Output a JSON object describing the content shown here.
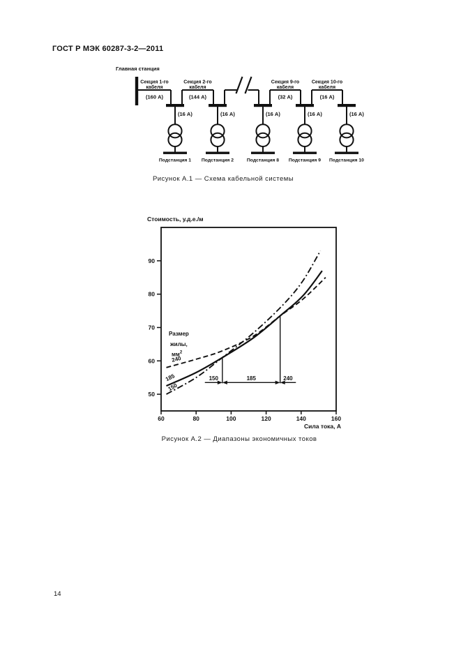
{
  "page": {
    "header": "ГОСТ Р МЭК 60287-3-2—2011",
    "page_number": "14"
  },
  "figure1": {
    "caption": "Рисунок А.1 — Схема кабельной системы",
    "main_station_label": "Главная станция",
    "sections": [
      {
        "label_line1": "Секция 1-го",
        "label_line2": "кабеля",
        "current": "(160 А)"
      },
      {
        "label_line1": "Секция 2-го",
        "label_line2": "кабеля",
        "current": "(144 А)"
      },
      {
        "break": true
      },
      {
        "label_line1": "Секция 9-го",
        "label_line2": "кабеля",
        "current": "(32 А)"
      },
      {
        "label_line1": "Секция 10-го",
        "label_line2": "кабеля",
        "current": "(16 А)"
      }
    ],
    "drop_current": "(16 А)",
    "substations": [
      "Подстанция 1",
      "Подстанция 2",
      "Подстанция 8",
      "Подстанция 9",
      "Подстанция 10"
    ]
  },
  "figure2": {
    "caption": "Рисунок А.2 — Диапазоны экономичных токов",
    "chart_data": {
      "type": "line",
      "title": "",
      "xlabel": "Сила тока, А",
      "ylabel": "Стоимость, у.д.е./м",
      "xlim": [
        60,
        160
      ],
      "ylim": [
        45,
        100
      ],
      "xticks": [
        60,
        80,
        100,
        120,
        140,
        160
      ],
      "yticks": [
        50,
        60,
        70,
        80,
        90
      ],
      "grid": false,
      "legend_title": {
        "lines": [
          "Размер",
          "жилы,"
        ],
        "unit_base": "мм",
        "unit_sup": "2"
      },
      "series": [
        {
          "name": "240",
          "style": "dashed",
          "points": [
            [
              63,
              58
            ],
            [
              80,
              60.5
            ],
            [
              95,
              63
            ],
            [
              113,
              67.5
            ],
            [
              128,
              73.5
            ],
            [
              141,
              78.5
            ],
            [
              154,
              85
            ]
          ]
        },
        {
          "name": "185",
          "style": "solid",
          "points": [
            [
              63,
              52.5
            ],
            [
              80,
              56.5
            ],
            [
              95,
              61
            ],
            [
              113,
              67
            ],
            [
              128,
              73.5
            ],
            [
              141,
              79.5
            ],
            [
              152,
              87
            ]
          ]
        },
        {
          "name": "150",
          "style": "dashdot",
          "points": [
            [
              63,
              50
            ],
            [
              80,
              55
            ],
            [
              95,
              61
            ],
            [
              113,
              68.5
            ],
            [
              130,
              77
            ],
            [
              141,
              84
            ],
            [
              151,
              93
            ]
          ]
        }
      ],
      "annotation": {
        "baseline_y": 53.5,
        "boundaries": [
          {
            "x": 95,
            "y": 61
          },
          {
            "x": 128,
            "y": 73.5
          }
        ],
        "ranges": [
          {
            "label": "150",
            "from": 85,
            "to": 95,
            "arrows": "right"
          },
          {
            "label": "185",
            "from": 95,
            "to": 128,
            "arrows": "both"
          },
          {
            "label": "240",
            "from": 128,
            "to": 137,
            "arrows": "left"
          }
        ]
      }
    }
  }
}
